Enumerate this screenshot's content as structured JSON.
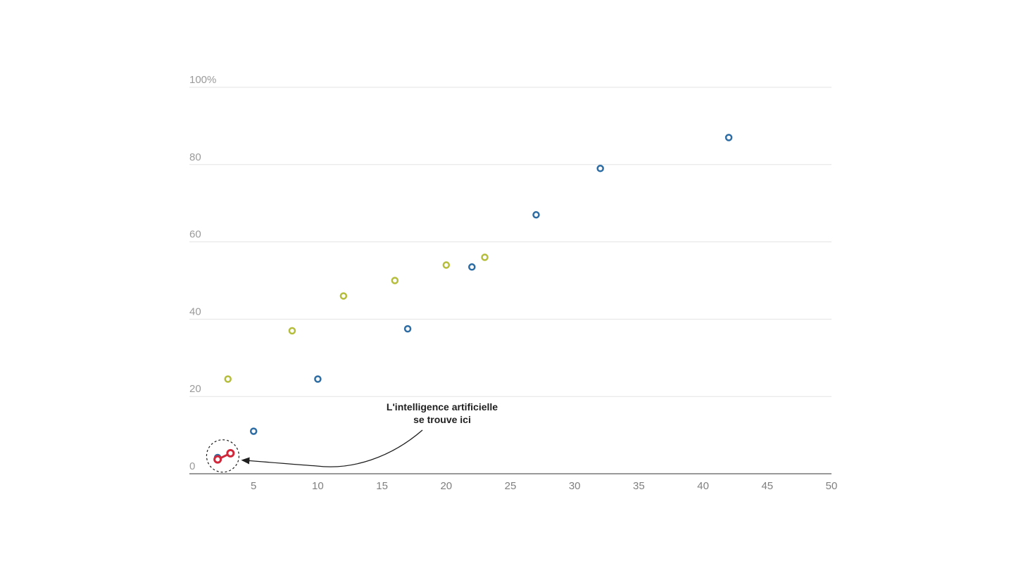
{
  "chart_data": {
    "type": "scatter",
    "title": "",
    "xlabel": "",
    "ylabel": "",
    "xlim": [
      0,
      50
    ],
    "ylim": [
      0,
      100
    ],
    "x_ticks": [
      5,
      10,
      15,
      20,
      25,
      30,
      35,
      40,
      45,
      50
    ],
    "x_tick_labels": [
      "5",
      "10",
      "15",
      "20",
      "25",
      "30",
      "35",
      "40",
      "45",
      "50"
    ],
    "y_ticks": [
      0,
      20,
      40,
      60,
      80,
      100
    ],
    "y_tick_labels": [
      "0",
      "20",
      "40",
      "60",
      "80",
      "100%"
    ],
    "grid": "horizontal",
    "legend": "none",
    "series": [
      {
        "color": "#2e6da4",
        "points": [
          {
            "x": 2.2,
            "y": 4.2
          },
          {
            "x": 5,
            "y": 11
          },
          {
            "x": 10,
            "y": 24.5
          },
          {
            "x": 17,
            "y": 37.5
          },
          {
            "x": 22,
            "y": 53.5
          },
          {
            "x": 27,
            "y": 67
          },
          {
            "x": 32,
            "y": 79
          },
          {
            "x": 42,
            "y": 87
          }
        ]
      },
      {
        "color": "#b5bd3c",
        "points": [
          {
            "x": 3,
            "y": 24.5
          },
          {
            "x": 8,
            "y": 37
          },
          {
            "x": 12,
            "y": 46
          },
          {
            "x": 16,
            "y": 50
          },
          {
            "x": 20,
            "y": 54
          },
          {
            "x": 23,
            "y": 56
          }
        ]
      },
      {
        "color": "#d0283a",
        "connected": true,
        "points": [
          {
            "x": 2.2,
            "y": 3.7
          },
          {
            "x": 3.2,
            "y": 5.3
          }
        ]
      }
    ],
    "annotation": {
      "lines": [
        "L'intelligence artificielle",
        "se trouve ici"
      ],
      "target": {
        "x": 2.6,
        "y": 4.6
      },
      "style": "dashed-circle-with-arrow"
    }
  }
}
